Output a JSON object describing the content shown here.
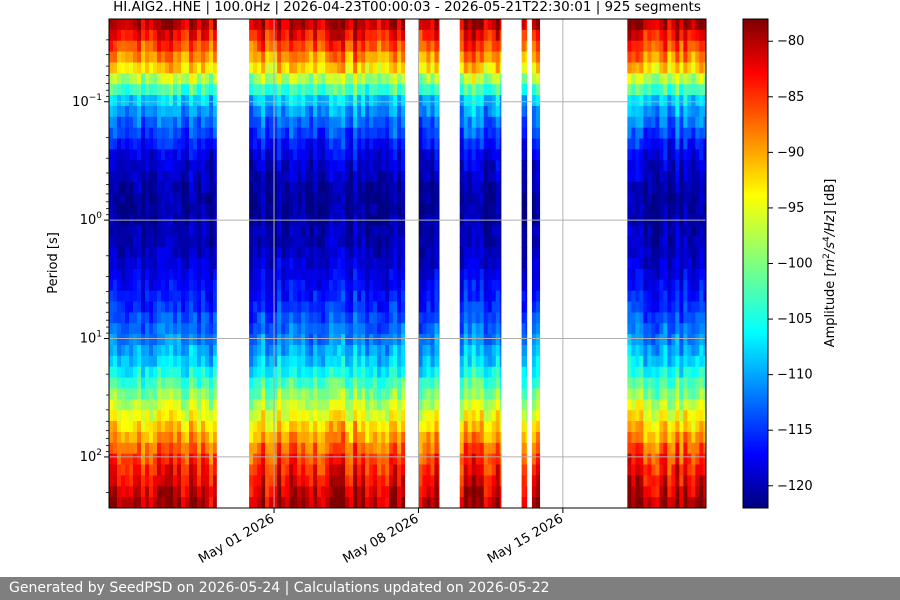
{
  "chart_data": {
    "type": "heatmap",
    "title": "HI.AIG2..HNE | 100.0Hz | 2026-04-23T00:00:03 - 2026-05-21T22:30:01 | 925 segments",
    "xlabel": "",
    "ylabel": "Period [s]",
    "x_range": [
      "2026-04-23T00:00:03",
      "2026-05-21T22:30:01"
    ],
    "x_ticks": [
      {
        "date": "2026-05-01",
        "label": "May 01 2026"
      },
      {
        "date": "2026-05-08",
        "label": "May 08 2026"
      },
      {
        "date": "2026-05-15",
        "label": "May 15 2026"
      }
    ],
    "y_scale": "log",
    "y_inverted": true,
    "y_range": [
      0.02,
      270
    ],
    "y_ticks": [
      {
        "value": 0.1,
        "label": "10",
        "exp": "−1"
      },
      {
        "value": 1,
        "label": "10",
        "exp": "0"
      },
      {
        "value": 10,
        "label": "10",
        "exp": "1"
      },
      {
        "value": 100,
        "label": "10",
        "exp": "2"
      }
    ],
    "grid": true,
    "colorbar": {
      "label": "Amplitude [m²/s⁴/Hz] [dB]",
      "colormap": "jet",
      "range": [
        -122,
        -78
      ],
      "ticks": [
        -80,
        -85,
        -90,
        -95,
        -100,
        -105,
        -110,
        -115,
        -120
      ]
    },
    "data_segments": [
      [
        "2026-04-23T00:00",
        "2026-04-28T05:00"
      ],
      [
        "2026-04-29T19:00",
        "2026-05-07T08:00"
      ],
      [
        "2026-05-08T00:00",
        "2026-05-09T00:00"
      ],
      [
        "2026-05-10T00:00",
        "2026-05-12T00:00"
      ],
      [
        "2026-05-13T00:00",
        "2026-05-13T06:00"
      ],
      [
        "2026-05-13T12:00",
        "2026-05-13T21:00"
      ],
      [
        "2026-05-18T03:00",
        "2026-05-21T22:30"
      ]
    ],
    "psd_profile": [
      {
        "period": 0.02,
        "db": -79
      },
      {
        "period": 0.05,
        "db": -92
      },
      {
        "period": 0.1,
        "db": -108
      },
      {
        "period": 0.3,
        "db": -118
      },
      {
        "period": 0.7,
        "db": -121
      },
      {
        "period": 2,
        "db": -119
      },
      {
        "period": 5,
        "db": -115
      },
      {
        "period": 15,
        "db": -108
      },
      {
        "period": 40,
        "db": -96
      },
      {
        "period": 100,
        "db": -86
      },
      {
        "period": 270,
        "db": -79
      }
    ]
  },
  "footer": {
    "text": "Generated by SeedPSD on 2026-05-24 | Calculations updated on 2026-05-22"
  }
}
